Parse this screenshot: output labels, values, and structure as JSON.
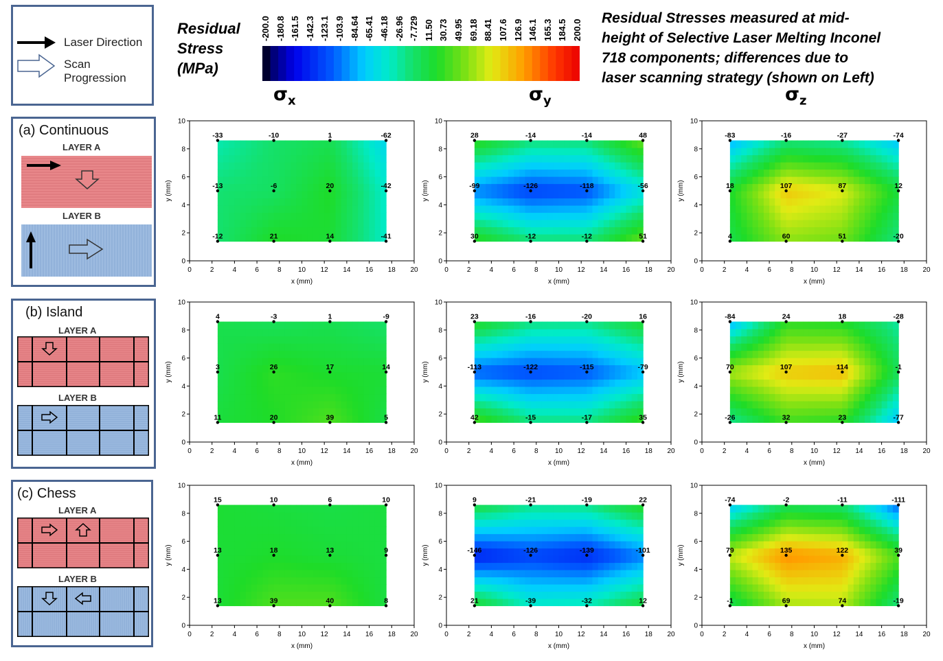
{
  "legend": {
    "laser_direction": "Laser Direction",
    "scan_progression": "Scan Progression"
  },
  "colorbar": {
    "title_lines": [
      "Residual",
      "Stress",
      "(MPa)"
    ],
    "ticks": [
      "-200.0",
      "-180.8",
      "-161.5",
      "-142.3",
      "-123.1",
      "-103.9",
      "-84.64",
      "-65.41",
      "-46.18",
      "-26.96",
      "-7.729",
      "11.50",
      "30.73",
      "49.95",
      "69.18",
      "88.41",
      "107.6",
      "126.9",
      "146.1",
      "165.3",
      "184.5",
      "200.0"
    ]
  },
  "main_title_lines": [
    "Residual Stresses measured at mid-",
    "height of Selective Laser Melting Inconel",
    "718 components; differences due to",
    "laser scanning strategy (shown on Left)"
  ],
  "column_headers": [
    {
      "sym": "σ",
      "sub": "x"
    },
    {
      "sym": "σ",
      "sub": "y"
    },
    {
      "sym": "σ",
      "sub": "z"
    }
  ],
  "strategies": [
    {
      "title": "(a) Continuous",
      "layer_a": "LAYER A",
      "layer_b": "LAYER B"
    },
    {
      "title": "(b) Island",
      "layer_a": "LAYER A",
      "layer_b": "LAYER B"
    },
    {
      "title": "(c) Chess",
      "layer_a": "LAYER A",
      "layer_b": "LAYER B"
    }
  ],
  "colors": {
    "border": "#4a6591",
    "layer_a": "#e8878a",
    "layer_b": "#9dbbe0"
  },
  "chart_data": {
    "type": "heatmap",
    "xlabel": "x (mm)",
    "ylabel": "y (mm)",
    "xlim": [
      0,
      20
    ],
    "ylim": [
      0,
      10
    ],
    "x_ticks": [
      0,
      2,
      4,
      6,
      8,
      10,
      12,
      14,
      16,
      18,
      20
    ],
    "y_ticks": [
      0,
      2,
      4,
      6,
      8,
      10
    ],
    "measure_x": [
      2.5,
      7.5,
      12.5,
      17.5
    ],
    "measure_y": [
      8.6,
      5.0,
      1.4
    ],
    "color_scale": {
      "min": -200,
      "max": 200
    },
    "panels": [
      {
        "strategy": "(a) Continuous",
        "component": "σx",
        "values": [
          [
            -33,
            -10,
            1,
            -62
          ],
          [
            -13,
            -6,
            20,
            -42
          ],
          [
            -12,
            21,
            14,
            -41
          ]
        ]
      },
      {
        "strategy": "(a) Continuous",
        "component": "σy",
        "values": [
          [
            28,
            -14,
            -14,
            48
          ],
          [
            -99,
            -126,
            -118,
            -56
          ],
          [
            30,
            -12,
            -12,
            51
          ]
        ]
      },
      {
        "strategy": "(a) Continuous",
        "component": "σz",
        "values": [
          [
            -83,
            -16,
            -27,
            -74
          ],
          [
            18,
            107,
            87,
            12
          ],
          [
            4,
            60,
            51,
            -20
          ]
        ]
      },
      {
        "strategy": "(b) Island",
        "component": "σx",
        "values": [
          [
            4,
            -3,
            1,
            -9
          ],
          [
            3,
            26,
            17,
            14
          ],
          [
            11,
            20,
            39,
            5
          ]
        ]
      },
      {
        "strategy": "(b) Island",
        "component": "σy",
        "values": [
          [
            23,
            -16,
            -20,
            16
          ],
          [
            -113,
            -122,
            -115,
            -79
          ],
          [
            42,
            -15,
            -17,
            35
          ]
        ]
      },
      {
        "strategy": "(b) Island",
        "component": "σz",
        "values": [
          [
            -84,
            24,
            18,
            -28
          ],
          [
            70,
            107,
            114,
            -1
          ],
          [
            -26,
            32,
            23,
            -77
          ]
        ]
      },
      {
        "strategy": "(c) Chess",
        "component": "σx",
        "values": [
          [
            15,
            10,
            6,
            10
          ],
          [
            13,
            18,
            13,
            9
          ],
          [
            13,
            39,
            40,
            8
          ]
        ]
      },
      {
        "strategy": "(c) Chess",
        "component": "σy",
        "values": [
          [
            9,
            -21,
            -19,
            22
          ],
          [
            -146,
            -126,
            -139,
            -101
          ],
          [
            21,
            -39,
            -32,
            12
          ]
        ]
      },
      {
        "strategy": "(c) Chess",
        "component": "σz",
        "values": [
          [
            -74,
            -2,
            -11,
            -111
          ],
          [
            79,
            135,
            122,
            39
          ],
          [
            -1,
            69,
            74,
            -19
          ]
        ]
      }
    ]
  }
}
